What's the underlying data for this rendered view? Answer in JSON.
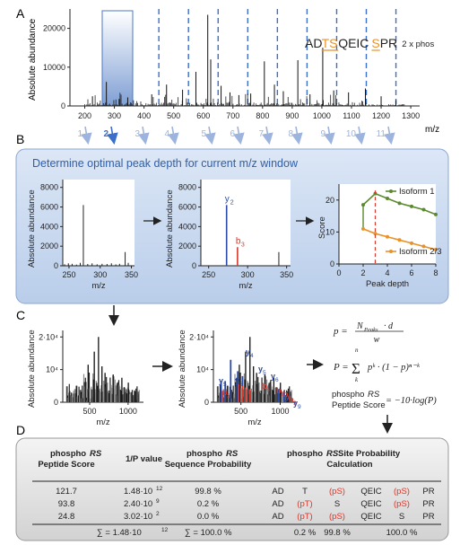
{
  "panel_letters": [
    "A",
    "B",
    "C",
    "D"
  ],
  "panelA": {
    "ylabel": "Absolute abundance",
    "xlabel": "m/z",
    "yticks": [
      "0",
      "10000",
      "20000"
    ],
    "xticks": [
      "200",
      "300",
      "400",
      "500",
      "600",
      "700",
      "800",
      "900",
      "1000",
      "1100",
      "1200",
      "1300"
    ],
    "peptide": {
      "segments": [
        {
          "text": "AD",
          "color": "#222222"
        },
        {
          "text": "TS",
          "color": "#e8922b",
          "underline": true
        },
        {
          "text": "QEIC",
          "color": "#222222"
        },
        {
          "text": "S",
          "color": "#e8922b",
          "underline": true
        },
        {
          "text": "PR",
          "color": "#222222"
        }
      ],
      "note": "2 x phos"
    },
    "windows": [
      "1",
      "2",
      "3",
      "4",
      "5",
      "6",
      "7",
      "8",
      "9",
      "10",
      "11"
    ],
    "active_window": "2",
    "dashed_color": "#3b6fc9"
  },
  "panelB": {
    "title": "Determine optimal peak depth for current m/z window",
    "left_chart": {
      "ylabel": "Absolute abundance",
      "xlabel": "m/z",
      "yticks": [
        "0",
        "2000",
        "4000",
        "6000",
        "8000"
      ],
      "xticks": [
        "250",
        "300",
        "350"
      ]
    },
    "mid_chart": {
      "ylabel": "Absolute abundance",
      "xlabel": "m/z",
      "yticks": [
        "0",
        "2000",
        "4000",
        "6000",
        "8000"
      ],
      "xticks": [
        "250",
        "300",
        "350"
      ],
      "labels": {
        "y": "y",
        "y_sub": "2",
        "b": "b",
        "b_sub": "3"
      }
    },
    "score_chart": {
      "ylabel": "Score",
      "xlabel": "Peak depth",
      "yticks": [
        "0",
        "10",
        "20"
      ],
      "xticks": [
        "0",
        "2",
        "4",
        "6",
        "8"
      ],
      "legend": [
        "Isoform 1",
        "Isoform 2/3"
      ],
      "series": [
        {
          "name": "Isoform 1",
          "color": "#5a8a2e",
          "x": [
            2,
            3,
            4,
            5,
            6,
            7,
            8
          ],
          "y": [
            18.5,
            22,
            20.5,
            19,
            18,
            17,
            15.5
          ]
        },
        {
          "name": "Isoform 2/3",
          "color": "#e8922b",
          "x": [
            2,
            3,
            4,
            5,
            6,
            7,
            8
          ],
          "y": [
            11,
            9.5,
            8.5,
            7.5,
            6.5,
            5.5,
            4.5
          ]
        }
      ],
      "optimal_depth": 3
    }
  },
  "panelC": {
    "left": {
      "ylabel": "Absolute abundance",
      "xlabel": "m/z",
      "yticks": [
        "0",
        "10⁴",
        "2·10⁴"
      ],
      "xticks": [
        "500",
        "1000"
      ]
    },
    "right": {
      "ylabel": "Absolute abundance",
      "xlabel": "m/z",
      "yticks": [
        "0",
        "10⁴",
        "2·10⁴"
      ],
      "xticks": [
        "500",
        "1000"
      ],
      "ion_labels_blue": [
        "y",
        "y",
        "y",
        "y",
        "y",
        "y",
        "y",
        "y"
      ],
      "ion_subs_blue": [
        "5",
        "3",
        "4",
        "5",
        "6",
        "8",
        "9",
        "3"
      ],
      "ion_labels_red": [
        "b",
        "b",
        "b",
        "b",
        "b"
      ],
      "ion_subs_red": [
        "3",
        "6",
        "7",
        "8",
        "9"
      ]
    },
    "formulas": {
      "p_lhs": "p =",
      "p_num": "N",
      "p_num_sub": "Peaks",
      "p_num_rest": " · d",
      "p_den": "w",
      "P_lhs": "P =",
      "P_sum": "Σ",
      "P_top": "n",
      "P_bottom": "k",
      "P_body": "pᵏ · (1 − p)ⁿ⁻ᵏ",
      "score_label_1": "phospho",
      "score_label_rs": "RS",
      "score_label_2": "Peptide Score",
      "score_rhs": "= −10·log(P)"
    }
  },
  "panelD": {
    "headers": {
      "h1a": "phospho",
      "h1b": "RS",
      "h1c": "Peptide Score",
      "h2": "1/P value",
      "h3a": "phospho",
      "h3b": "RS",
      "h3c": "Sequence Probability",
      "h4a": "phospho",
      "h4b": "RS",
      "h4c": " Site Probability",
      "h4d": "Calculation"
    },
    "rows": [
      {
        "score": "121.7",
        "pval": "1.48·10",
        "pexp": "12",
        "prob": "99.8 %",
        "seq": [
          "AD",
          "T",
          "(pS)",
          "QEIC",
          "(pS)",
          "PR"
        ],
        "red": [
          false,
          false,
          true,
          false,
          true,
          false
        ]
      },
      {
        "score": "93.8",
        "pval": "2.40·10",
        "pexp": "9",
        "prob": "0.2 %",
        "seq": [
          "AD",
          "(pT)",
          "S",
          "QEIC",
          "(pS)",
          "PR"
        ],
        "red": [
          false,
          true,
          false,
          false,
          true,
          false
        ]
      },
      {
        "score": "24.8",
        "pval": "3.02·10",
        "pexp": "2",
        "prob": "0.0 %",
        "seq": [
          "AD",
          "(pT)",
          "(pS)",
          "QEIC",
          "S",
          "PR"
        ],
        "red": [
          false,
          true,
          true,
          false,
          false,
          false
        ]
      }
    ],
    "totals": {
      "pval": "∑ = 1.48·10",
      "pexp": "12",
      "prob": "∑ = 100.0 %",
      "site1": "0.2 %",
      "site2": "99.8 %",
      "site3": "100.0 %"
    }
  }
}
